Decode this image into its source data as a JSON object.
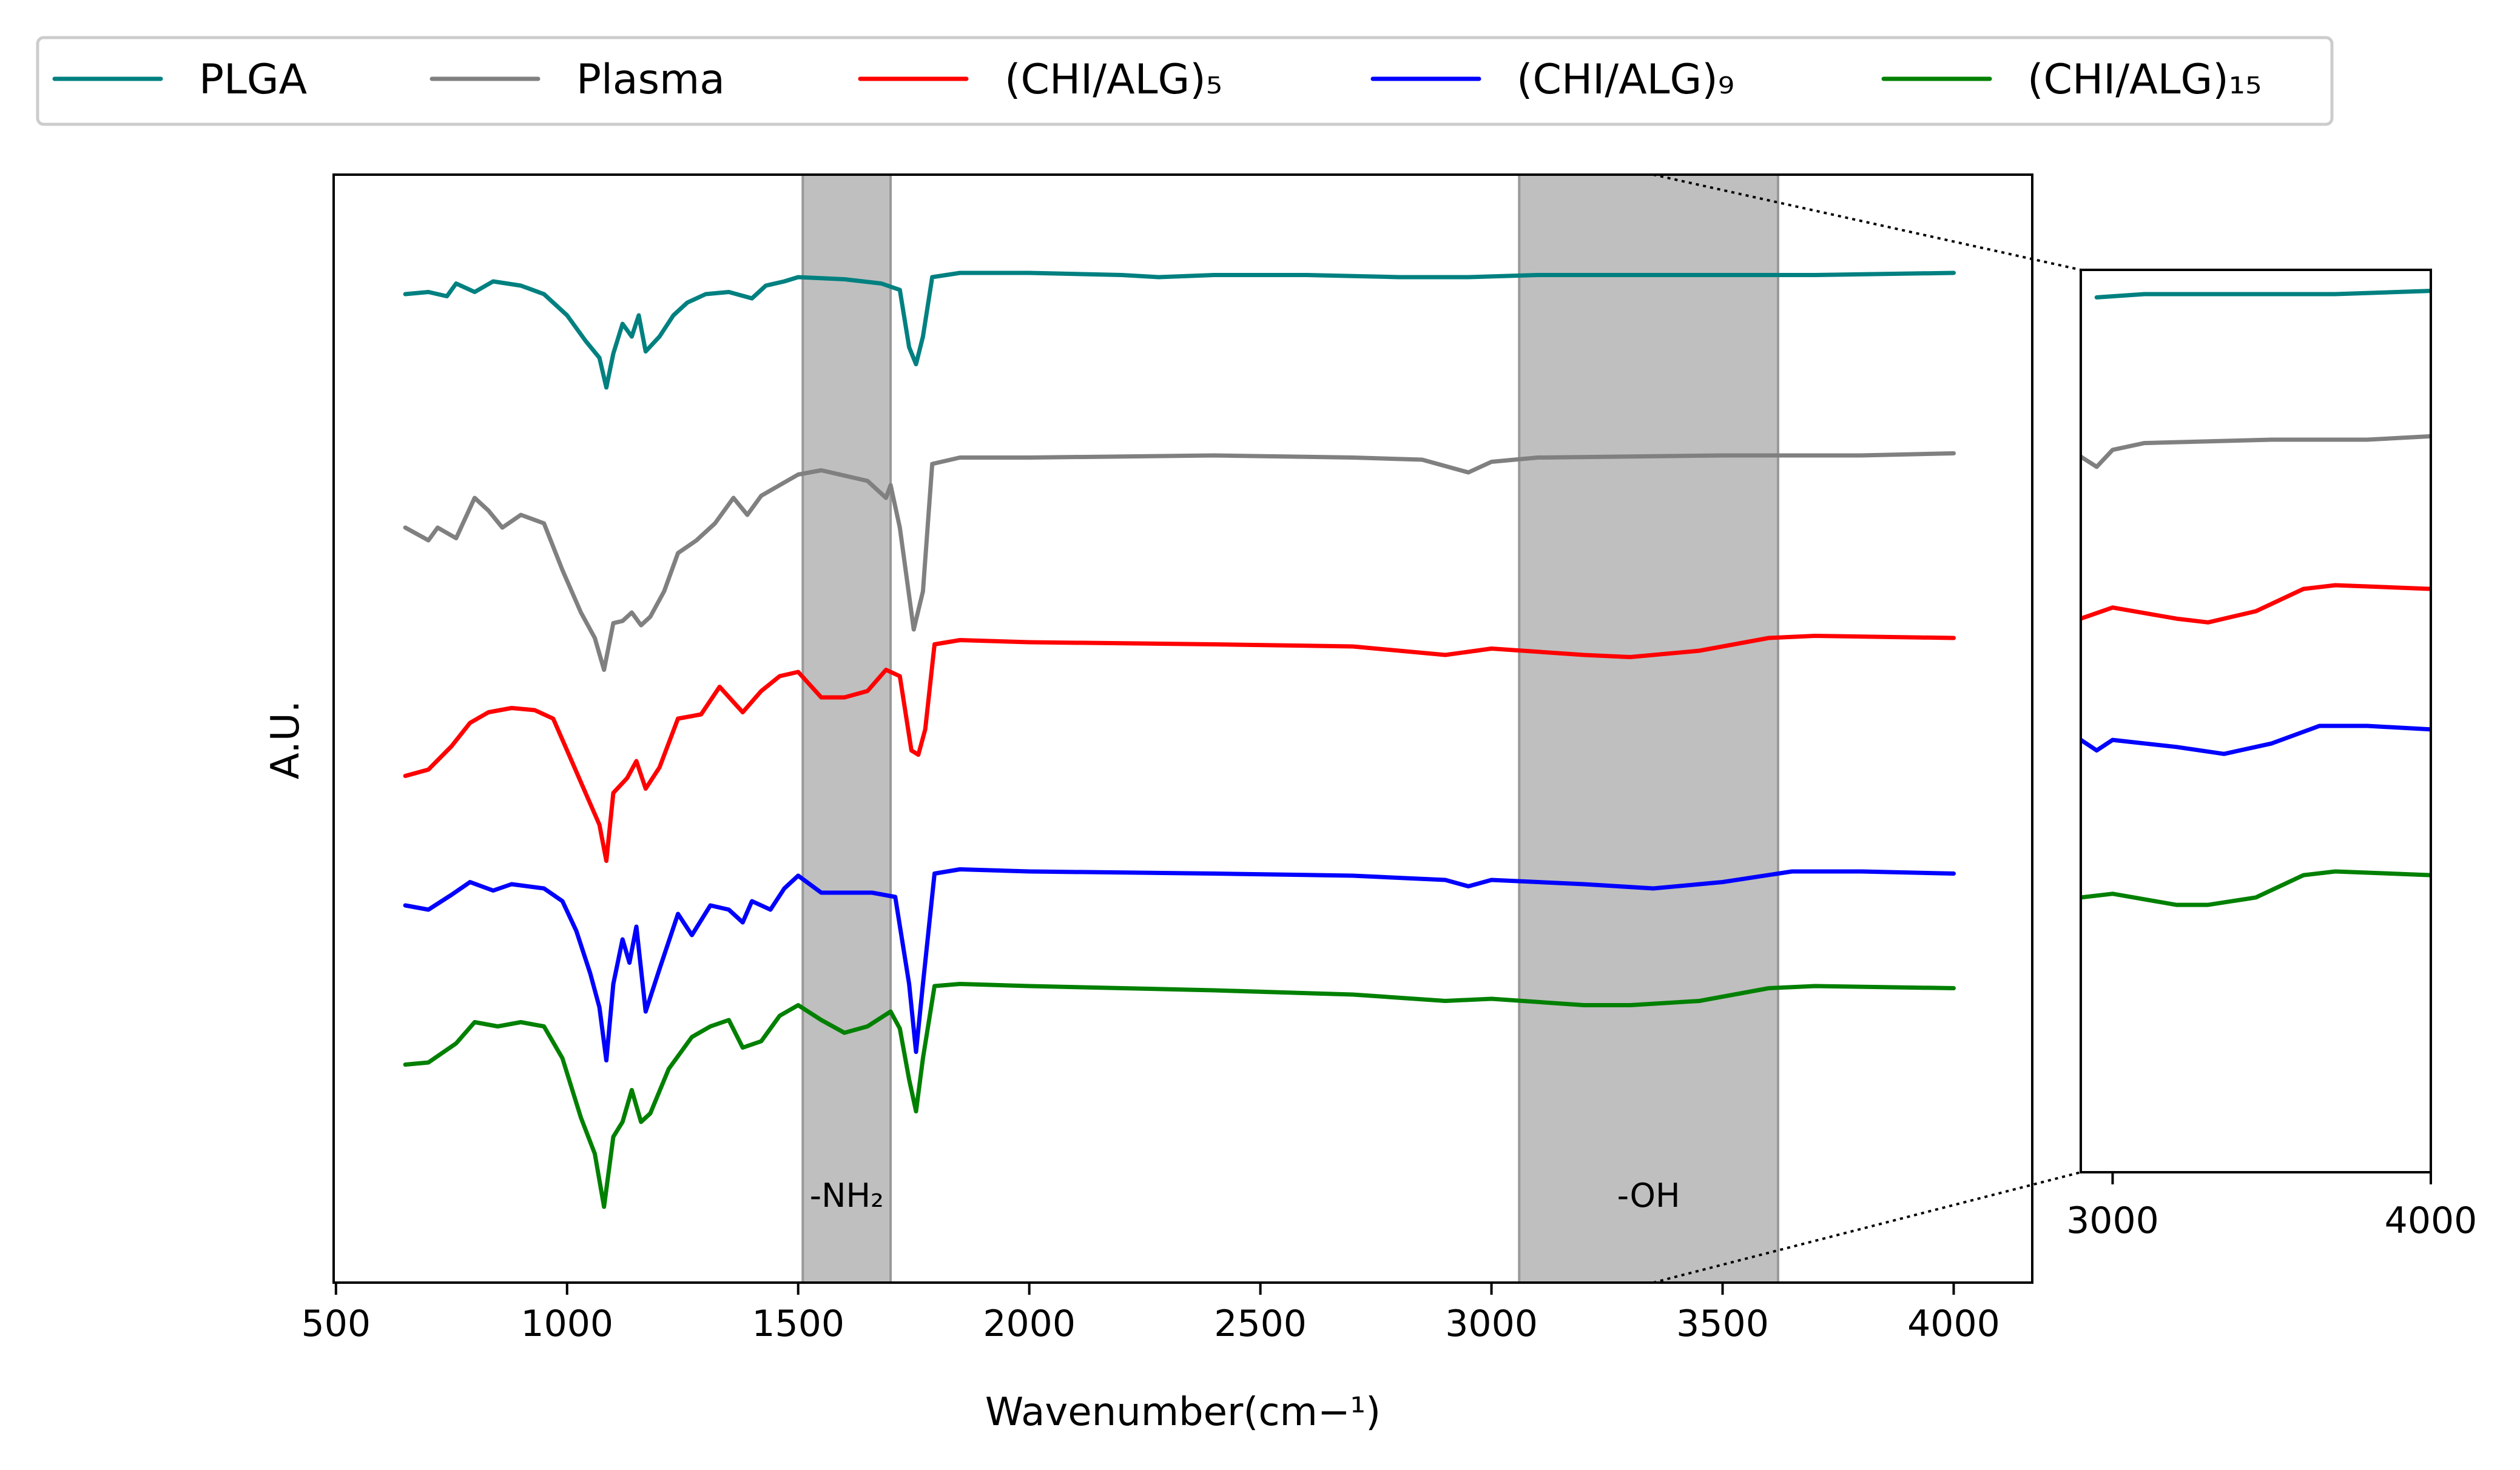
{
  "chart_data": {
    "type": "line",
    "xlabel": "Wavenumber(cm$^-1$)",
    "xlabel_display": "Wavenumber(cm−¹)",
    "ylabel": "A.U.",
    "xlim": [
      495,
      4170
    ],
    "xticks": [
      "500",
      "1000",
      "1500",
      "2000",
      "2500",
      "3000",
      "3500",
      "4000"
    ],
    "inset": {
      "xlim": [
        2900,
        4000
      ],
      "xticks": [
        "3000",
        "4000"
      ],
      "zoom_from": 3350
    },
    "shaded_regions": [
      {
        "x_from": 1510,
        "x_to": 1700,
        "label": "-NH₂"
      },
      {
        "x_from": 3060,
        "x_to": 3620,
        "label": "-OH"
      }
    ],
    "legend": {
      "position": "top",
      "entries": [
        "PLGA",
        "Plasma",
        "(CHI/ALG)₅",
        "(CHI/ALG)₉",
        "(CHI/ALG)₁₅"
      ]
    },
    "series": [
      {
        "name": "PLGA",
        "color": "#008080",
        "points": [
          [
            650,
            0.1
          ],
          [
            700,
            0.09
          ],
          [
            740,
            0.11
          ],
          [
            760,
            0.05
          ],
          [
            800,
            0.09
          ],
          [
            840,
            0.04
          ],
          [
            900,
            0.06
          ],
          [
            950,
            0.1
          ],
          [
            1000,
            0.2
          ],
          [
            1040,
            0.32
          ],
          [
            1070,
            0.4
          ],
          [
            1085,
            0.54
          ],
          [
            1100,
            0.38
          ],
          [
            1120,
            0.24
          ],
          [
            1140,
            0.3
          ],
          [
            1155,
            0.2
          ],
          [
            1170,
            0.37
          ],
          [
            1200,
            0.3
          ],
          [
            1230,
            0.2
          ],
          [
            1260,
            0.14
          ],
          [
            1300,
            0.1
          ],
          [
            1350,
            0.09
          ],
          [
            1400,
            0.12
          ],
          [
            1430,
            0.06
          ],
          [
            1470,
            0.04
          ],
          [
            1500,
            0.02
          ],
          [
            1600,
            0.03
          ],
          [
            1680,
            0.05
          ],
          [
            1720,
            0.08
          ],
          [
            1740,
            0.35
          ],
          [
            1755,
            0.43
          ],
          [
            1770,
            0.3
          ],
          [
            1790,
            0.02
          ],
          [
            1850,
            0.0
          ],
          [
            2000,
            0.0
          ],
          [
            2200,
            0.01
          ],
          [
            2280,
            0.02
          ],
          [
            2400,
            0.01
          ],
          [
            2600,
            0.01
          ],
          [
            2800,
            0.02
          ],
          [
            2950,
            0.02
          ],
          [
            3100,
            0.01
          ],
          [
            3400,
            0.01
          ],
          [
            3700,
            0.01
          ],
          [
            4000,
            0.0
          ]
        ]
      },
      {
        "name": "Plasma",
        "color": "#808080",
        "points": [
          [
            650,
            1.2
          ],
          [
            700,
            1.26
          ],
          [
            720,
            1.2
          ],
          [
            760,
            1.25
          ],
          [
            800,
            1.06
          ],
          [
            830,
            1.12
          ],
          [
            860,
            1.2
          ],
          [
            900,
            1.14
          ],
          [
            950,
            1.18
          ],
          [
            990,
            1.4
          ],
          [
            1030,
            1.6
          ],
          [
            1060,
            1.72
          ],
          [
            1080,
            1.87
          ],
          [
            1100,
            1.65
          ],
          [
            1120,
            1.64
          ],
          [
            1140,
            1.6
          ],
          [
            1160,
            1.66
          ],
          [
            1180,
            1.62
          ],
          [
            1210,
            1.5
          ],
          [
            1240,
            1.32
          ],
          [
            1280,
            1.26
          ],
          [
            1320,
            1.18
          ],
          [
            1360,
            1.06
          ],
          [
            1390,
            1.14
          ],
          [
            1420,
            1.05
          ],
          [
            1460,
            1.0
          ],
          [
            1500,
            0.95
          ],
          [
            1550,
            0.93
          ],
          [
            1650,
            0.98
          ],
          [
            1690,
            1.06
          ],
          [
            1700,
            1.0
          ],
          [
            1720,
            1.2
          ],
          [
            1750,
            1.68
          ],
          [
            1770,
            1.5
          ],
          [
            1790,
            0.9
          ],
          [
            1850,
            0.87
          ],
          [
            2000,
            0.87
          ],
          [
            2400,
            0.86
          ],
          [
            2700,
            0.87
          ],
          [
            2850,
            0.88
          ],
          [
            2950,
            0.94
          ],
          [
            3000,
            0.89
          ],
          [
            3100,
            0.87
          ],
          [
            3500,
            0.86
          ],
          [
            3800,
            0.86
          ],
          [
            4000,
            0.85
          ]
        ]
      },
      {
        "name": "(CHI/ALG)₅",
        "color": "#ff0000",
        "points": [
          [
            650,
            2.37
          ],
          [
            700,
            2.34
          ],
          [
            750,
            2.23
          ],
          [
            790,
            2.12
          ],
          [
            830,
            2.07
          ],
          [
            880,
            2.05
          ],
          [
            930,
            2.06
          ],
          [
            970,
            2.1
          ],
          [
            1000,
            2.25
          ],
          [
            1040,
            2.45
          ],
          [
            1070,
            2.6
          ],
          [
            1085,
            2.77
          ],
          [
            1100,
            2.45
          ],
          [
            1130,
            2.38
          ],
          [
            1150,
            2.3
          ],
          [
            1170,
            2.43
          ],
          [
            1200,
            2.33
          ],
          [
            1240,
            2.1
          ],
          [
            1290,
            2.08
          ],
          [
            1330,
            1.95
          ],
          [
            1380,
            2.07
          ],
          [
            1420,
            1.97
          ],
          [
            1460,
            1.9
          ],
          [
            1500,
            1.88
          ],
          [
            1550,
            2.0
          ],
          [
            1600,
            2.0
          ],
          [
            1650,
            1.97
          ],
          [
            1690,
            1.87
          ],
          [
            1720,
            1.9
          ],
          [
            1745,
            2.25
          ],
          [
            1760,
            2.27
          ],
          [
            1775,
            2.15
          ],
          [
            1795,
            1.75
          ],
          [
            1850,
            1.73
          ],
          [
            2000,
            1.74
          ],
          [
            2400,
            1.75
          ],
          [
            2700,
            1.76
          ],
          [
            2900,
            1.8
          ],
          [
            3000,
            1.77
          ],
          [
            3200,
            1.8
          ],
          [
            3300,
            1.81
          ],
          [
            3450,
            1.78
          ],
          [
            3600,
            1.72
          ],
          [
            3700,
            1.71
          ],
          [
            4000,
            1.72
          ]
        ]
      },
      {
        "name": "(CHI/ALG)₉",
        "color": "#0000ff",
        "points": [
          [
            650,
            2.98
          ],
          [
            700,
            3.0
          ],
          [
            750,
            2.93
          ],
          [
            790,
            2.87
          ],
          [
            840,
            2.91
          ],
          [
            880,
            2.88
          ],
          [
            950,
            2.9
          ],
          [
            990,
            2.96
          ],
          [
            1020,
            3.1
          ],
          [
            1050,
            3.3
          ],
          [
            1070,
            3.46
          ],
          [
            1085,
            3.71
          ],
          [
            1100,
            3.35
          ],
          [
            1120,
            3.14
          ],
          [
            1135,
            3.25
          ],
          [
            1150,
            3.08
          ],
          [
            1170,
            3.48
          ],
          [
            1200,
            3.28
          ],
          [
            1240,
            3.02
          ],
          [
            1270,
            3.12
          ],
          [
            1310,
            2.98
          ],
          [
            1350,
            3.0
          ],
          [
            1380,
            3.06
          ],
          [
            1400,
            2.96
          ],
          [
            1440,
            3.0
          ],
          [
            1470,
            2.9
          ],
          [
            1500,
            2.84
          ],
          [
            1550,
            2.92
          ],
          [
            1600,
            2.92
          ],
          [
            1660,
            2.92
          ],
          [
            1710,
            2.94
          ],
          [
            1740,
            3.35
          ],
          [
            1755,
            3.67
          ],
          [
            1770,
            3.35
          ],
          [
            1795,
            2.83
          ],
          [
            1850,
            2.81
          ],
          [
            2000,
            2.82
          ],
          [
            2400,
            2.83
          ],
          [
            2700,
            2.84
          ],
          [
            2900,
            2.86
          ],
          [
            2950,
            2.89
          ],
          [
            3000,
            2.86
          ],
          [
            3200,
            2.88
          ],
          [
            3350,
            2.9
          ],
          [
            3500,
            2.87
          ],
          [
            3650,
            2.82
          ],
          [
            3800,
            2.82
          ],
          [
            4000,
            2.83
          ]
        ]
      },
      {
        "name": "(CHI/ALG)₁₅",
        "color": "#008000",
        "points": [
          [
            650,
            3.73
          ],
          [
            700,
            3.72
          ],
          [
            760,
            3.63
          ],
          [
            800,
            3.53
          ],
          [
            850,
            3.55
          ],
          [
            900,
            3.53
          ],
          [
            950,
            3.55
          ],
          [
            990,
            3.7
          ],
          [
            1030,
            3.98
          ],
          [
            1060,
            4.15
          ],
          [
            1080,
            4.4
          ],
          [
            1100,
            4.07
          ],
          [
            1120,
            4.0
          ],
          [
            1140,
            3.85
          ],
          [
            1160,
            4.0
          ],
          [
            1180,
            3.96
          ],
          [
            1220,
            3.75
          ],
          [
            1270,
            3.6
          ],
          [
            1310,
            3.55
          ],
          [
            1350,
            3.52
          ],
          [
            1380,
            3.65
          ],
          [
            1420,
            3.62
          ],
          [
            1460,
            3.5
          ],
          [
            1500,
            3.45
          ],
          [
            1550,
            3.52
          ],
          [
            1600,
            3.58
          ],
          [
            1650,
            3.55
          ],
          [
            1700,
            3.48
          ],
          [
            1720,
            3.56
          ],
          [
            1740,
            3.8
          ],
          [
            1755,
            3.95
          ],
          [
            1770,
            3.7
          ],
          [
            1795,
            3.36
          ],
          [
            1850,
            3.35
          ],
          [
            2000,
            3.36
          ],
          [
            2400,
            3.38
          ],
          [
            2700,
            3.4
          ],
          [
            2900,
            3.43
          ],
          [
            3000,
            3.42
          ],
          [
            3200,
            3.45
          ],
          [
            3300,
            3.45
          ],
          [
            3450,
            3.43
          ],
          [
            3600,
            3.37
          ],
          [
            3700,
            3.36
          ],
          [
            4000,
            3.37
          ]
        ]
      }
    ]
  }
}
